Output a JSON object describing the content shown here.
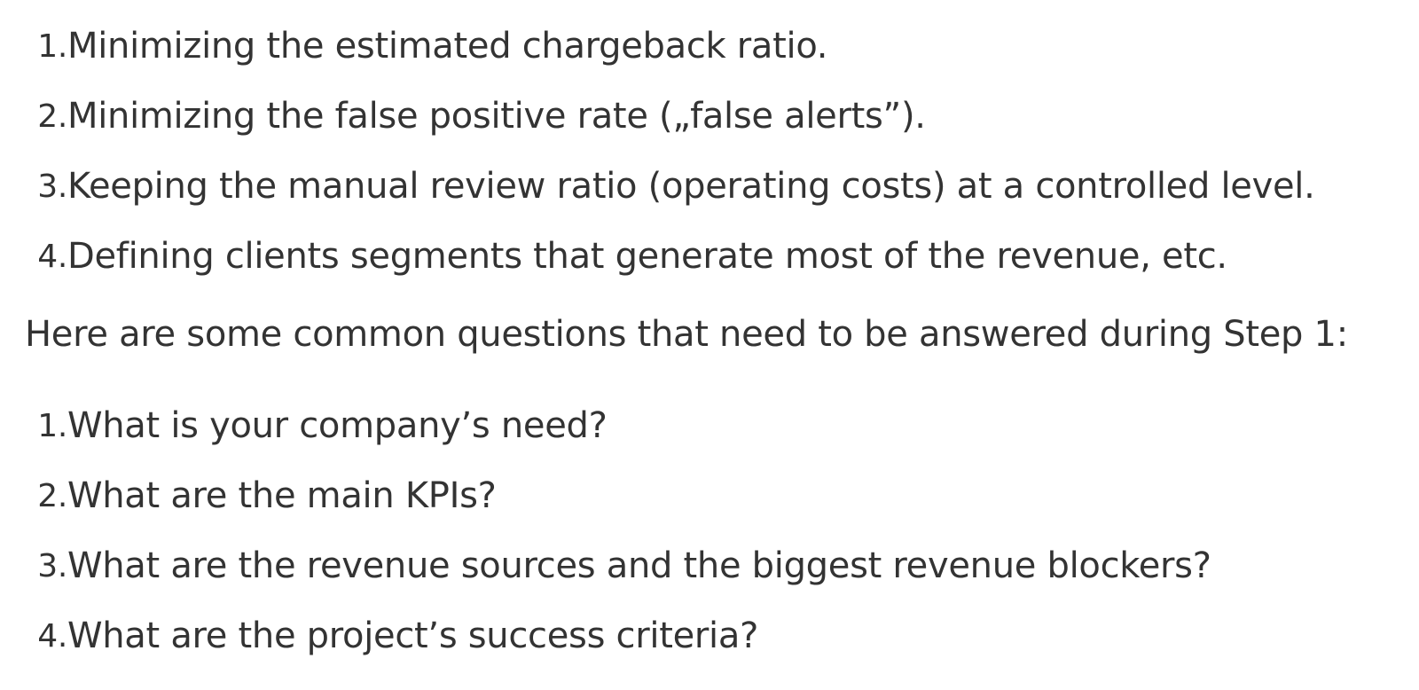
{
  "first_list": [
    {
      "number": "1.",
      "text": "Minimizing the estimated chargeback ratio."
    },
    {
      "number": "2.",
      "text": "Minimizing the false positive rate („false alerts”)."
    },
    {
      "number": "3.",
      "text": "Keeping the manual review ratio (operating costs) at a controlled level."
    },
    {
      "number": "4.",
      "text": "Defining clients segments that generate most of the revenue, etc."
    }
  ],
  "intro_paragraph": "Here are some common questions that need to be answered during Step 1:",
  "second_list": [
    {
      "number": "1.",
      "text": "What is your company’s need?"
    },
    {
      "number": "2.",
      "text": "What are the main KPIs?"
    },
    {
      "number": "3.",
      "text": "What are the revenue sources and the biggest revenue blockers?"
    },
    {
      "number": "4.",
      "text": "What are the project’s success criteria?"
    }
  ]
}
